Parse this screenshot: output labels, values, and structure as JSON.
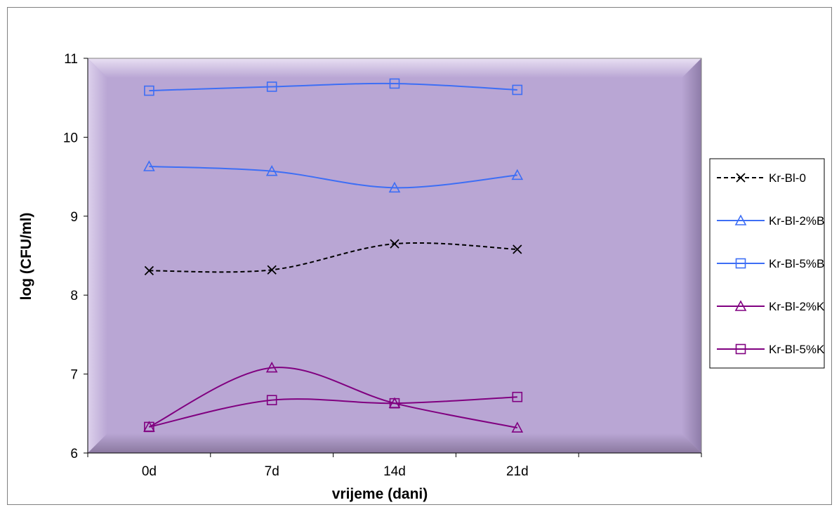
{
  "chart_data": {
    "type": "line",
    "title": "",
    "xlabel": "vrijeme (dani)",
    "ylabel": "log (CFU/ml)",
    "categories": [
      "0d",
      "7d",
      "14d",
      "21d"
    ],
    "ylim": [
      6,
      11
    ],
    "yticks": [
      "6",
      "7",
      "8",
      "9",
      "10",
      "11"
    ],
    "grid": false,
    "legend_position": "right",
    "plot_background": "#b9a6d4",
    "series": [
      {
        "name": "Kr-Bl-0",
        "values": [
          8.31,
          8.32,
          8.65,
          8.58
        ],
        "color": "#000000",
        "marker": "x",
        "dash": true
      },
      {
        "name": "Kr-Bl-2%B",
        "values": [
          9.63,
          9.57,
          9.36,
          9.52
        ],
        "color": "#3d6ef5",
        "marker": "triangle",
        "dash": false
      },
      {
        "name": "Kr-Bl-5%B",
        "values": [
          10.59,
          10.64,
          10.68,
          10.6
        ],
        "color": "#3d6ef5",
        "marker": "square",
        "dash": false
      },
      {
        "name": "Kr-Bl-2%K",
        "values": [
          6.33,
          7.08,
          6.63,
          6.32
        ],
        "color": "#800080",
        "marker": "triangle",
        "dash": false
      },
      {
        "name": "Kr-Bl-5%K",
        "values": [
          6.33,
          6.67,
          6.63,
          6.71
        ],
        "color": "#800080",
        "marker": "square",
        "dash": false
      }
    ]
  }
}
